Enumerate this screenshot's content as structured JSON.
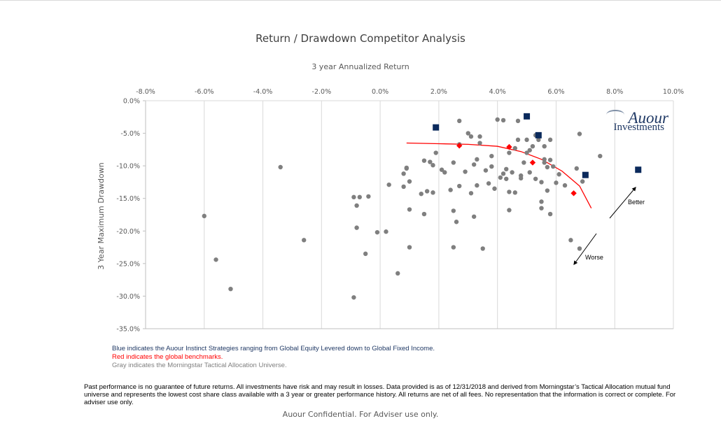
{
  "chart_data": {
    "type": "scatter",
    "title": "Return / Drawdown Competitor Analysis",
    "xlabel": "3 year Annualized Return",
    "ylabel": "3 Year Maximum Drawdown",
    "xlim": [
      -0.08,
      0.1
    ],
    "ylim": [
      -0.35,
      0.0
    ],
    "x_ticks": [
      "-8.0%",
      "-6.0%",
      "-4.0%",
      "-2.0%",
      "0.0%",
      "2.0%",
      "4.0%",
      "6.0%",
      "8.0%",
      "10.0%"
    ],
    "y_ticks": [
      "0.0%",
      "-5.0%",
      "-10.0%",
      "-15.0%",
      "-20.0%",
      "-25.0%",
      "-30.0%",
      "-35.0%"
    ],
    "grid": "vertical",
    "x_axis_position": "top",
    "series": [
      {
        "color": "#7f7f7f",
        "marker": "circle",
        "points": [
          [
            -0.06,
            -0.177
          ],
          [
            -0.056,
            -0.244
          ],
          [
            -0.051,
            -0.289
          ],
          [
            -0.034,
            -0.102
          ],
          [
            -0.026,
            -0.214
          ],
          [
            -0.009,
            -0.302
          ],
          [
            -0.009,
            -0.148
          ],
          [
            -0.008,
            -0.195
          ],
          [
            -0.008,
            -0.161
          ],
          [
            -0.007,
            -0.148
          ],
          [
            -0.005,
            -0.235
          ],
          [
            -0.004,
            -0.147
          ],
          [
            -0.001,
            -0.202
          ],
          [
            0.002,
            -0.201
          ],
          [
            0.003,
            -0.129
          ],
          [
            0.006,
            -0.265
          ],
          [
            0.008,
            -0.112
          ],
          [
            0.008,
            -0.132
          ],
          [
            0.009,
            -0.104
          ],
          [
            0.009,
            -0.103
          ],
          [
            0.01,
            -0.167
          ],
          [
            0.01,
            -0.124
          ],
          [
            0.01,
            -0.225
          ],
          [
            0.014,
            -0.143
          ],
          [
            0.015,
            -0.174
          ],
          [
            0.015,
            -0.092
          ],
          [
            0.016,
            -0.139
          ],
          [
            0.017,
            -0.094
          ],
          [
            0.018,
            -0.099
          ],
          [
            0.018,
            -0.141
          ],
          [
            0.019,
            -0.08
          ],
          [
            0.021,
            -0.106
          ],
          [
            0.022,
            -0.11
          ],
          [
            0.024,
            -0.137
          ],
          [
            0.025,
            -0.225
          ],
          [
            0.025,
            -0.095
          ],
          [
            0.025,
            -0.169
          ],
          [
            0.026,
            -0.186
          ],
          [
            0.027,
            -0.031
          ],
          [
            0.027,
            -0.131
          ],
          [
            0.027,
            -0.067
          ],
          [
            0.029,
            -0.109
          ],
          [
            0.03,
            -0.05
          ],
          [
            0.031,
            -0.055
          ],
          [
            0.031,
            -0.142
          ],
          [
            0.032,
            -0.178
          ],
          [
            0.032,
            -0.098
          ],
          [
            0.033,
            -0.13
          ],
          [
            0.033,
            -0.09
          ],
          [
            0.034,
            -0.055
          ],
          [
            0.034,
            -0.065
          ],
          [
            0.035,
            -0.227
          ],
          [
            0.036,
            -0.107
          ],
          [
            0.037,
            -0.127
          ],
          [
            0.038,
            -0.101
          ],
          [
            0.038,
            -0.085
          ],
          [
            0.039,
            -0.135
          ],
          [
            0.04,
            -0.029
          ],
          [
            0.041,
            -0.118
          ],
          [
            0.042,
            -0.112
          ],
          [
            0.042,
            -0.03
          ],
          [
            0.043,
            -0.12
          ],
          [
            0.043,
            -0.105
          ],
          [
            0.044,
            -0.08
          ],
          [
            0.044,
            -0.168
          ],
          [
            0.044,
            -0.14
          ],
          [
            0.045,
            -0.11
          ],
          [
            0.046,
            -0.073
          ],
          [
            0.046,
            -0.141
          ],
          [
            0.047,
            -0.031
          ],
          [
            0.047,
            -0.06
          ],
          [
            0.048,
            -0.115
          ],
          [
            0.048,
            -0.119
          ],
          [
            0.049,
            -0.095
          ],
          [
            0.05,
            -0.08
          ],
          [
            0.05,
            -0.06
          ],
          [
            0.051,
            -0.076
          ],
          [
            0.051,
            -0.11
          ],
          [
            0.052,
            -0.07
          ],
          [
            0.053,
            -0.12
          ],
          [
            0.053,
            -0.053
          ],
          [
            0.054,
            -0.06
          ],
          [
            0.055,
            -0.165
          ],
          [
            0.055,
            -0.155
          ],
          [
            0.055,
            -0.125
          ],
          [
            0.056,
            -0.07
          ],
          [
            0.056,
            -0.09
          ],
          [
            0.056,
            -0.095
          ],
          [
            0.057,
            -0.138
          ],
          [
            0.057,
            -0.102
          ],
          [
            0.058,
            -0.06
          ],
          [
            0.058,
            -0.174
          ],
          [
            0.058,
            -0.091
          ],
          [
            0.059,
            -0.101
          ],
          [
            0.06,
            -0.126
          ],
          [
            0.061,
            -0.113
          ],
          [
            0.063,
            -0.13
          ],
          [
            0.065,
            -0.214
          ],
          [
            0.067,
            -0.104
          ],
          [
            0.068,
            -0.227
          ],
          [
            0.068,
            -0.051
          ],
          [
            0.069,
            -0.124
          ],
          [
            0.075,
            -0.085
          ]
        ]
      },
      {
        "color": "#ff0000",
        "marker": "diamond",
        "points": [
          [
            0.027,
            -0.069
          ],
          [
            0.044,
            -0.071
          ],
          [
            0.052,
            -0.095
          ],
          [
            0.066,
            -0.142
          ]
        ]
      },
      {
        "color": "#0b2a5c",
        "marker": "square",
        "points": [
          [
            0.019,
            -0.041
          ],
          [
            0.05,
            -0.024
          ],
          [
            0.054,
            -0.053
          ],
          [
            0.07,
            -0.114
          ],
          [
            0.088,
            -0.106
          ]
        ]
      }
    ],
    "trendline": {
      "color": "#ff0000",
      "points": [
        [
          0.009,
          -0.065
        ],
        [
          0.02,
          -0.066
        ],
        [
          0.03,
          -0.067
        ],
        [
          0.04,
          -0.07
        ],
        [
          0.048,
          -0.078
        ],
        [
          0.055,
          -0.09
        ],
        [
          0.062,
          -0.108
        ],
        [
          0.068,
          -0.131
        ],
        [
          0.072,
          -0.165
        ]
      ]
    },
    "annotations": [
      {
        "text": "Better",
        "direction": "up-right"
      },
      {
        "text": "Worse",
        "direction": "down-left"
      }
    ]
  },
  "legend": {
    "blue": "Blue indicates the Auour Instinct Strategies ranging from Global Equity Levered down to Global Fixed Income.",
    "red": "Red indicates the global benchmarks.",
    "gray": "Gray indicates the Morningstar Tactical Allocation Universe.",
    "colors": {
      "blue": "#1f3864",
      "red": "#ff0000",
      "gray": "#7f7f7f"
    }
  },
  "logo": {
    "line1": "Auour",
    "line2": "Investments"
  },
  "disclaimer": "Past performance is no guarantee of future returns.  All investments have risk and may result in losses.  Data provided is as of 12/31/2018 and derived from Morningstar’s Tactical Allocation mutual fund universe and represents the lowest cost share class available with a 3 year or greater performance history.  All returns are net of all fees.  No representation that the information is correct or complete.  For adviser use only.",
  "footer": "Auour Confidential.  For Adviser use only."
}
